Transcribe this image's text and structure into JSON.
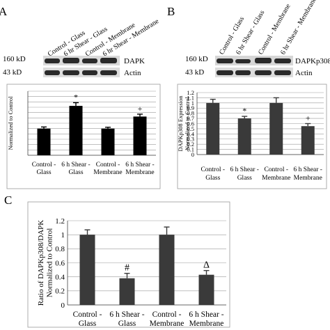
{
  "panels": {
    "A": {
      "letter": "A",
      "lanes": [
        "Control - Glass",
        "6 hr Shear - Glass",
        "Control - Membrane",
        "6 hr Shear - Membrane"
      ],
      "blots": [
        {
          "size": "160 kD",
          "label": "DAPK"
        },
        {
          "size": "43 kD",
          "label": "Actin"
        }
      ]
    },
    "B": {
      "letter": "B",
      "lanes": [
        "Control - Glass",
        "6 hr Shear - Glass",
        "Control - Membrane",
        "6 hr Shear - Membrane"
      ],
      "blots": [
        {
          "size": "160 kD",
          "label": "DAPKp308"
        },
        {
          "size": "43 kD",
          "label": "Actin"
        }
      ]
    },
    "C": {
      "letter": "C"
    }
  },
  "chart_data": [
    {
      "panel": "A",
      "type": "bar",
      "categories": [
        [
          "Control -",
          "Glass"
        ],
        [
          "6 h Shear -",
          "Glass"
        ],
        [
          "Control -",
          "Membrane"
        ],
        [
          "6 h Shear -",
          "Membrane"
        ]
      ],
      "values": [
        1.0,
        1.85,
        1.0,
        1.45
      ],
      "errors": [
        0.06,
        0.12,
        0.05,
        0.09
      ],
      "annotations": [
        "",
        "*",
        "",
        "+"
      ],
      "ylabel": [
        "Normalized to Control"
      ],
      "ylim": [
        0,
        2.4
      ],
      "yticks": [
        0,
        0.2,
        0.4,
        0.6,
        0.8,
        1,
        1.2,
        1.4,
        1.6,
        1.8,
        2,
        2.2,
        2.4
      ],
      "bar_color": "#000000"
    },
    {
      "panel": "B",
      "type": "bar",
      "categories": [
        [
          "Control -",
          "Glass"
        ],
        [
          "6 h Shear -",
          "Glass"
        ],
        [
          "Control -",
          "Membrane"
        ],
        [
          "6 h Shear -",
          "Membrane"
        ]
      ],
      "values": [
        1.0,
        0.7,
        1.0,
        0.55
      ],
      "errors": [
        0.07,
        0.04,
        0.1,
        0.05
      ],
      "annotations": [
        "",
        "*",
        "",
        "+"
      ],
      "ylabel": [
        "DAPKp308 Expression",
        "Normalized to Control"
      ],
      "ylim": [
        0,
        1.2
      ],
      "yticks": [
        0,
        0.1,
        0.2,
        0.3,
        0.4,
        0.5,
        0.6,
        0.7,
        0.8,
        0.9,
        1,
        1.1,
        1.2
      ],
      "bar_color": "#3a3a3a"
    },
    {
      "panel": "C",
      "type": "bar",
      "categories": [
        [
          "Control -",
          "Glass"
        ],
        [
          "6 h Shear -",
          "Glass"
        ],
        [
          "Control -",
          "Membrane"
        ],
        [
          "6 h Shear -",
          "Membrane"
        ]
      ],
      "values": [
        1.0,
        0.38,
        1.0,
        0.43
      ],
      "errors": [
        0.07,
        0.07,
        0.11,
        0.06
      ],
      "annotations": [
        "",
        "#",
        "",
        "Δ"
      ],
      "ylabel": [
        "Ratio of DAPKp308/DAPK",
        "Normalized to Control"
      ],
      "ylim": [
        0,
        1.2
      ],
      "yticks": [
        0,
        0.2,
        0.4,
        0.6,
        0.8,
        1,
        1.2
      ],
      "bar_color": "#3a3a3a"
    }
  ]
}
